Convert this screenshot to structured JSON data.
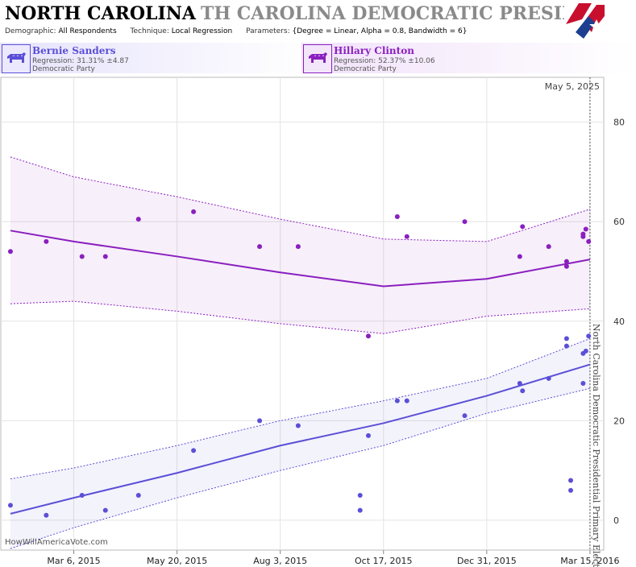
{
  "header": {
    "title_state": "NORTH CAROLINA",
    "title_rest": "TH CAROLINA DEMOCRATIC PRESIDENTIAL P",
    "params": [
      {
        "key": "Demographic:",
        "value": "All Respondents"
      },
      {
        "key": "Technique:",
        "value": "Local Regression"
      },
      {
        "key": "Parameters:",
        "value": "{Degree = Linear, Alpha = 0.8, Bandwidth = 6}"
      }
    ]
  },
  "candidates": [
    {
      "name": "Bernie Sanders",
      "regression": "Regression: 31.31% ±4.87",
      "party": "Democratic Party",
      "color": "#5b4fd6"
    },
    {
      "name": "Hillary Clinton",
      "regression": "Regression: 52.37% ±10.06",
      "party": "Democratic Party",
      "color": "#8a1fbf"
    }
  ],
  "current_date": "May 5, 2025",
  "watermark": "HowWillAmericaVote.com",
  "chart_data": {
    "type": "scatter",
    "election_label": "North Carolina Democratic Presidential Primary Election",
    "x_range": [
      "2015-01-12",
      "2016-03-25"
    ],
    "election_date": "2016-03-15",
    "y_range": [
      -6,
      89
    ],
    "y_ticks": [
      0,
      20,
      40,
      60,
      80
    ],
    "x_ticks": [
      {
        "date": "2015-03-06",
        "label": "Mar 6, 2015"
      },
      {
        "date": "2015-05-20",
        "label": "May 20, 2015"
      },
      {
        "date": "2015-08-03",
        "label": "Aug 3, 2015"
      },
      {
        "date": "2015-10-17",
        "label": "Oct 17, 2015"
      },
      {
        "date": "2015-12-31",
        "label": "Dec 31, 2015"
      },
      {
        "date": "2016-03-15",
        "label": "Mar 15, 2016"
      }
    ],
    "grid": true,
    "series": [
      {
        "name": "Bernie Sanders",
        "color": "#5b4fd6",
        "points": [
          {
            "x": "2015-01-19",
            "y": 3
          },
          {
            "x": "2015-02-14",
            "y": 1
          },
          {
            "x": "2015-03-12",
            "y": 5
          },
          {
            "x": "2015-03-29",
            "y": 2
          },
          {
            "x": "2015-04-22",
            "y": 5
          },
          {
            "x": "2015-06-01",
            "y": 14
          },
          {
            "x": "2015-07-19",
            "y": 20
          },
          {
            "x": "2015-08-16",
            "y": 19
          },
          {
            "x": "2015-09-30",
            "y": 5
          },
          {
            "x": "2015-09-30",
            "y": 2
          },
          {
            "x": "2015-10-06",
            "y": 17
          },
          {
            "x": "2015-10-27",
            "y": 24
          },
          {
            "x": "2015-11-03",
            "y": 24
          },
          {
            "x": "2015-12-15",
            "y": 21
          },
          {
            "x": "2016-01-24",
            "y": 27.5
          },
          {
            "x": "2016-01-26",
            "y": 26
          },
          {
            "x": "2016-02-14",
            "y": 28.5
          },
          {
            "x": "2016-02-27",
            "y": 36.5
          },
          {
            "x": "2016-02-27",
            "y": 35
          },
          {
            "x": "2016-03-01",
            "y": 8
          },
          {
            "x": "2016-03-01",
            "y": 6
          },
          {
            "x": "2016-03-10",
            "y": 27.5
          },
          {
            "x": "2016-03-10",
            "y": 33.5
          },
          {
            "x": "2016-03-12",
            "y": 34
          },
          {
            "x": "2016-03-14",
            "y": 37
          }
        ],
        "trend": [
          {
            "x": "2015-01-19",
            "y": 1.3
          },
          {
            "x": "2015-03-06",
            "y": 4.5
          },
          {
            "x": "2015-05-20",
            "y": 9.5
          },
          {
            "x": "2015-08-03",
            "y": 15
          },
          {
            "x": "2015-10-17",
            "y": 19.5
          },
          {
            "x": "2015-12-31",
            "y": 25
          },
          {
            "x": "2016-03-15",
            "y": 31.3
          }
        ],
        "band_upper": [
          {
            "x": "2015-01-19",
            "y": 8.3
          },
          {
            "x": "2015-03-06",
            "y": 10.5
          },
          {
            "x": "2015-05-20",
            "y": 15
          },
          {
            "x": "2015-08-03",
            "y": 20
          },
          {
            "x": "2015-10-17",
            "y": 24
          },
          {
            "x": "2015-12-31",
            "y": 28.5
          },
          {
            "x": "2016-03-15",
            "y": 36.5
          }
        ],
        "band_lower": [
          {
            "x": "2015-01-19",
            "y": -5.7
          },
          {
            "x": "2015-03-06",
            "y": -1.5
          },
          {
            "x": "2015-05-20",
            "y": 4.5
          },
          {
            "x": "2015-08-03",
            "y": 10
          },
          {
            "x": "2015-10-17",
            "y": 15
          },
          {
            "x": "2015-12-31",
            "y": 21.5
          },
          {
            "x": "2016-03-15",
            "y": 26.5
          }
        ]
      },
      {
        "name": "Hillary Clinton",
        "color": "#8a1fbf",
        "points": [
          {
            "x": "2015-01-19",
            "y": 54
          },
          {
            "x": "2015-02-14",
            "y": 56
          },
          {
            "x": "2015-03-12",
            "y": 53
          },
          {
            "x": "2015-03-29",
            "y": 53
          },
          {
            "x": "2015-04-22",
            "y": 60.5
          },
          {
            "x": "2015-06-01",
            "y": 62
          },
          {
            "x": "2015-07-19",
            "y": 55
          },
          {
            "x": "2015-08-16",
            "y": 55
          },
          {
            "x": "2015-10-06",
            "y": 37
          },
          {
            "x": "2015-10-27",
            "y": 61
          },
          {
            "x": "2015-11-03",
            "y": 57
          },
          {
            "x": "2015-12-15",
            "y": 60
          },
          {
            "x": "2016-01-24",
            "y": 53
          },
          {
            "x": "2016-01-26",
            "y": 59
          },
          {
            "x": "2016-02-14",
            "y": 55
          },
          {
            "x": "2016-02-27",
            "y": 52
          },
          {
            "x": "2016-02-27",
            "y": 51
          },
          {
            "x": "2016-03-10",
            "y": 57
          },
          {
            "x": "2016-03-10",
            "y": 57.5
          },
          {
            "x": "2016-03-12",
            "y": 58.5
          },
          {
            "x": "2016-03-14",
            "y": 56
          }
        ],
        "trend": [
          {
            "x": "2015-01-19",
            "y": 58.2
          },
          {
            "x": "2015-03-06",
            "y": 56
          },
          {
            "x": "2015-05-20",
            "y": 53
          },
          {
            "x": "2015-08-03",
            "y": 49.8
          },
          {
            "x": "2015-10-17",
            "y": 47
          },
          {
            "x": "2015-12-31",
            "y": 48.5
          },
          {
            "x": "2016-03-15",
            "y": 52.4
          }
        ],
        "band_upper": [
          {
            "x": "2015-01-19",
            "y": 73
          },
          {
            "x": "2015-03-06",
            "y": 69
          },
          {
            "x": "2015-05-20",
            "y": 65
          },
          {
            "x": "2015-08-03",
            "y": 60.5
          },
          {
            "x": "2015-10-17",
            "y": 56.5
          },
          {
            "x": "2015-12-31",
            "y": 56
          },
          {
            "x": "2016-03-15",
            "y": 62.5
          }
        ],
        "band_lower": [
          {
            "x": "2015-01-19",
            "y": 43.5
          },
          {
            "x": "2015-03-06",
            "y": 44
          },
          {
            "x": "2015-05-20",
            "y": 42
          },
          {
            "x": "2015-08-03",
            "y": 39.5
          },
          {
            "x": "2015-10-17",
            "y": 37.5
          },
          {
            "x": "2015-12-31",
            "y": 41
          },
          {
            "x": "2016-03-15",
            "y": 42.5
          }
        ]
      }
    ]
  }
}
